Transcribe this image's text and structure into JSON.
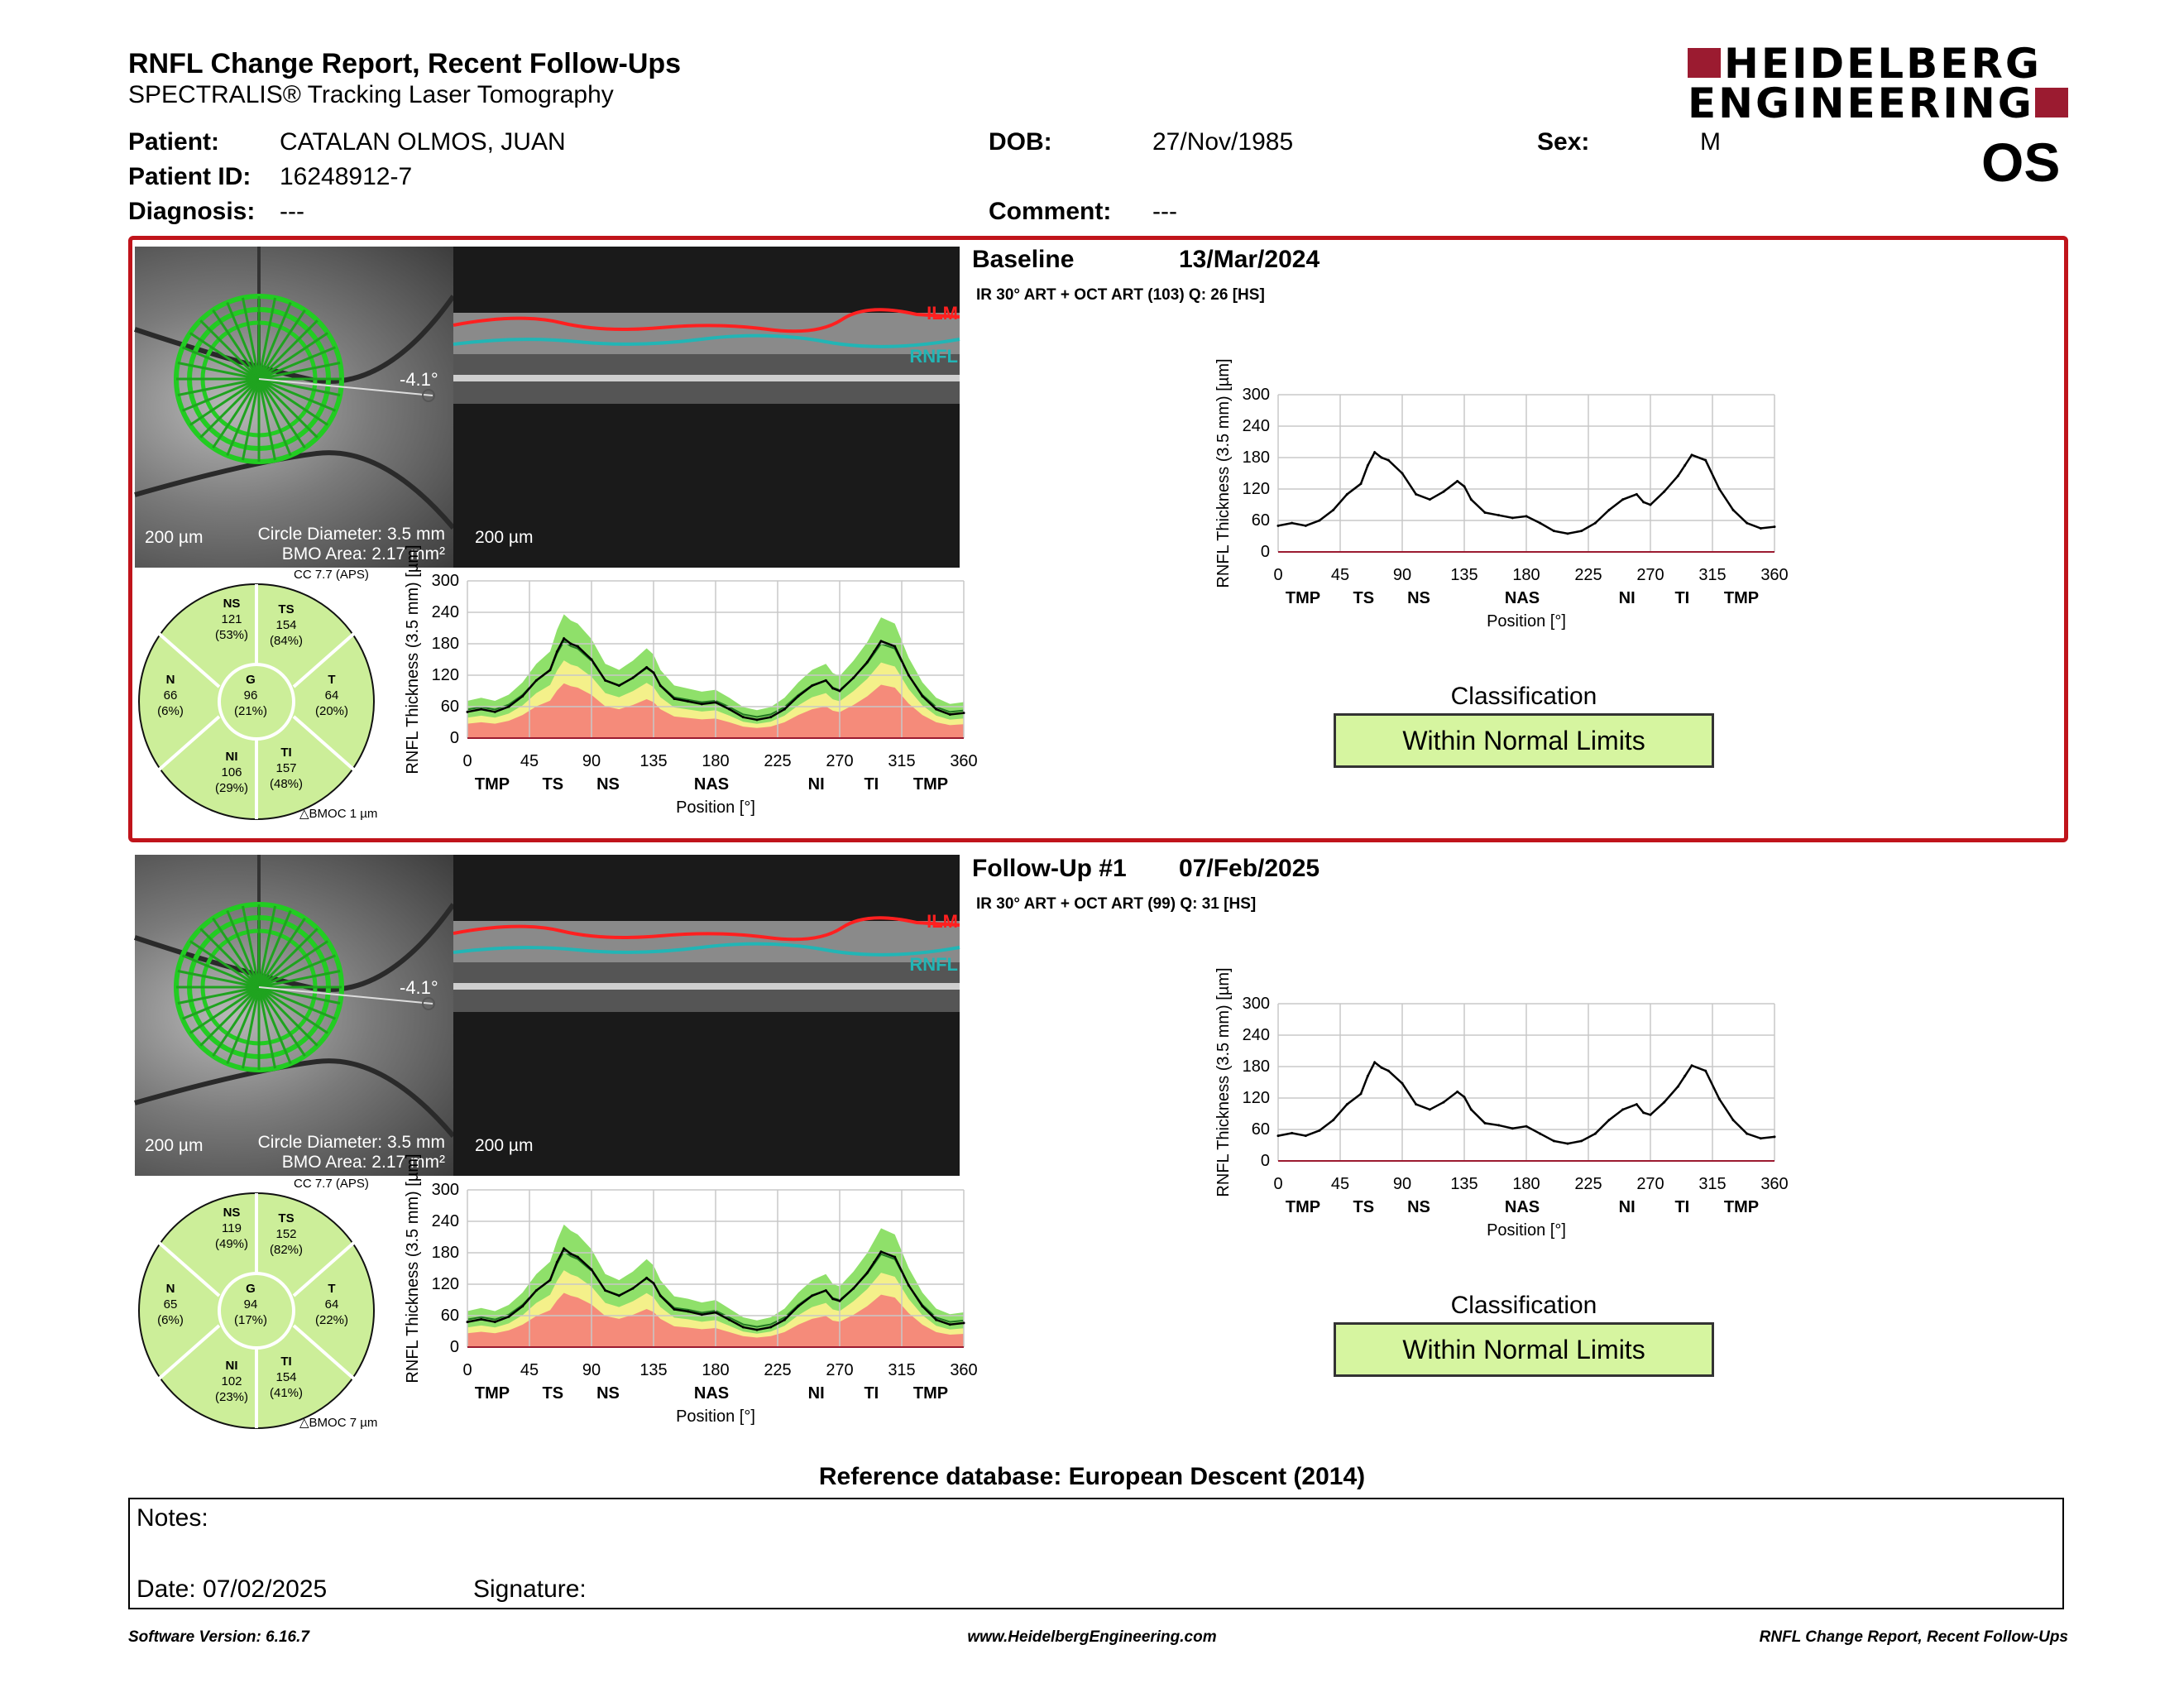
{
  "header": {
    "title": "RNFL Change Report, Recent Follow-Ups",
    "subtitle": "SPECTRALIS® Tracking Laser Tomography",
    "logo_line1": "HEIDELBERG",
    "logo_line2": "ENGINEERING",
    "brand_color": "#9b1b30"
  },
  "patient": {
    "patient_label": "Patient:",
    "patient_name": "CATALAN OLMOS, JUAN",
    "id_label": "Patient ID:",
    "id": "16248912-7",
    "diagnosis_label": "Diagnosis:",
    "diagnosis": "---",
    "dob_label": "DOB:",
    "dob": "27/Nov/1985",
    "comment_label": "Comment:",
    "comment": "---",
    "sex_label": "Sex:",
    "sex": "M",
    "eye": "OS"
  },
  "exams": [
    {
      "heading": "Baseline",
      "date": "13/Mar/2024",
      "scan_info": "IR 30° ART + OCT ART (103) Q: 26 [HS]",
      "fundus_scale": "200 µm",
      "circle_diameter": "Circle Diameter: 3.5 mm",
      "bmo_area": "BMO Area: 2.17 mm²",
      "angle": "-4.1°",
      "bscan_scale": "200 µm",
      "ilm": "ILM",
      "rnfl": "RNFL",
      "cc": "CC 7.7 (APS)",
      "bmoc": "BMOC 1 µm",
      "sectors": {
        "NS": {
          "label": "NS",
          "value": "121",
          "pct": "(53%)"
        },
        "TS": {
          "label": "TS",
          "value": "154",
          "pct": "(84%)"
        },
        "N": {
          "label": "N",
          "value": "66",
          "pct": "(6%)"
        },
        "G": {
          "label": "G",
          "value": "96",
          "pct": "(21%)"
        },
        "T": {
          "label": "T",
          "value": "64",
          "pct": "(20%)"
        },
        "NI": {
          "label": "NI",
          "value": "106",
          "pct": "(29%)"
        },
        "TI": {
          "label": "TI",
          "value": "157",
          "pct": "(48%)"
        }
      },
      "classification_title": "Classification",
      "classification": "Within Normal Limits"
    },
    {
      "heading": "Follow-Up #1",
      "date": "07/Feb/2025",
      "scan_info": "IR 30° ART + OCT ART (99) Q: 31 [HS]",
      "fundus_scale": "200 µm",
      "circle_diameter": "Circle Diameter: 3.5 mm",
      "bmo_area": "BMO Area: 2.17 mm²",
      "angle": "-4.1°",
      "bscan_scale": "200 µm",
      "ilm": "ILM",
      "rnfl": "RNFL",
      "cc": "CC 7.7 (APS)",
      "bmoc": "BMOC 7 µm",
      "sectors": {
        "NS": {
          "label": "NS",
          "value": "119",
          "pct": "(49%)"
        },
        "TS": {
          "label": "TS",
          "value": "152",
          "pct": "(82%)"
        },
        "N": {
          "label": "N",
          "value": "65",
          "pct": "(6%)"
        },
        "G": {
          "label": "G",
          "value": "94",
          "pct": "(17%)"
        },
        "T": {
          "label": "T",
          "value": "64",
          "pct": "(22%)"
        },
        "NI": {
          "label": "NI",
          "value": "102",
          "pct": "(23%)"
        },
        "TI": {
          "label": "TI",
          "value": "154",
          "pct": "(41%)"
        }
      },
      "classification_title": "Classification",
      "classification": "Within Normal Limits"
    }
  ],
  "chart_data": [
    {
      "type": "line",
      "title": "",
      "xlabel": "Position [°]",
      "ylabel": "RNFL Thickness (3.5 mm) [µm]",
      "xlim": [
        0,
        360
      ],
      "ylim": [
        0,
        300
      ],
      "xticks": [
        0,
        45,
        90,
        135,
        180,
        225,
        270,
        315,
        360
      ],
      "yticks": [
        0,
        60,
        120,
        180,
        240,
        300
      ],
      "sector_labels": [
        {
          "x": 18,
          "label": "TMP"
        },
        {
          "x": 62,
          "label": "TS"
        },
        {
          "x": 102,
          "label": "NS"
        },
        {
          "x": 177,
          "label": "NAS"
        },
        {
          "x": 253,
          "label": "NI"
        },
        {
          "x": 293,
          "label": "TI"
        },
        {
          "x": 336,
          "label": "TMP"
        }
      ],
      "series": [
        {
          "x": [
            0,
            10,
            20,
            30,
            40,
            50,
            60,
            65,
            70,
            75,
            80,
            90,
            100,
            110,
            120,
            130,
            135,
            140,
            150,
            160,
            170,
            180,
            190,
            200,
            210,
            220,
            230,
            240,
            250,
            260,
            265,
            270,
            280,
            290,
            295,
            300,
            310,
            320,
            330,
            340,
            350,
            360
          ],
          "values": [
            50,
            55,
            50,
            60,
            80,
            110,
            130,
            165,
            190,
            180,
            175,
            150,
            110,
            100,
            115,
            135,
            125,
            100,
            75,
            70,
            65,
            68,
            55,
            40,
            35,
            40,
            55,
            80,
            100,
            110,
            95,
            90,
            115,
            145,
            165,
            185,
            175,
            120,
            80,
            55,
            45,
            48
          ]
        }
      ],
      "colors": {
        "normal": "#8fe06a",
        "borderline": "#f4f08a",
        "outside": "#f58b7a",
        "line": "#000000",
        "mean": "#227722"
      }
    },
    {
      "type": "line",
      "title": "",
      "xlabel": "Position [°]",
      "ylabel": "RNFL Thickness (3.5 mm) [µm]",
      "xlim": [
        0,
        360
      ],
      "ylim": [
        0,
        300
      ],
      "xticks": [
        0,
        45,
        90,
        135,
        180,
        225,
        270,
        315,
        360
      ],
      "yticks": [
        0,
        60,
        120,
        180,
        240,
        300
      ],
      "sector_labels": [
        {
          "x": 18,
          "label": "TMP"
        },
        {
          "x": 62,
          "label": "TS"
        },
        {
          "x": 102,
          "label": "NS"
        },
        {
          "x": 177,
          "label": "NAS"
        },
        {
          "x": 253,
          "label": "NI"
        },
        {
          "x": 293,
          "label": "TI"
        },
        {
          "x": 336,
          "label": "TMP"
        }
      ],
      "series": [
        {
          "x": [
            0,
            10,
            20,
            30,
            40,
            50,
            60,
            65,
            70,
            75,
            80,
            90,
            100,
            110,
            120,
            130,
            135,
            140,
            150,
            160,
            170,
            180,
            190,
            200,
            210,
            220,
            230,
            240,
            250,
            260,
            265,
            270,
            280,
            290,
            295,
            300,
            310,
            320,
            330,
            340,
            350,
            360
          ],
          "values": [
            48,
            53,
            48,
            58,
            78,
            108,
            128,
            162,
            188,
            178,
            172,
            148,
            108,
            98,
            112,
            132,
            122,
            98,
            72,
            68,
            62,
            66,
            52,
            38,
            33,
            38,
            52,
            78,
            98,
            108,
            92,
            88,
            112,
            142,
            162,
            182,
            172,
            118,
            78,
            52,
            43,
            46
          ]
        }
      ],
      "colors": {
        "normal": "#8fe06a",
        "borderline": "#f4f08a",
        "outside": "#f58b7a",
        "line": "#000000",
        "mean": "#227722"
      }
    }
  ],
  "reference": "Reference database: European Descent (2014)",
  "notes": {
    "notes_label": "Notes:",
    "date_label": "Date: 07/02/2025",
    "signature_label": "Signature:"
  },
  "footer": {
    "version": "Software Version: 6.16.7",
    "url": "www.HeidelbergEngineering.com",
    "report_name": "RNFL Change Report, Recent Follow-Ups"
  }
}
